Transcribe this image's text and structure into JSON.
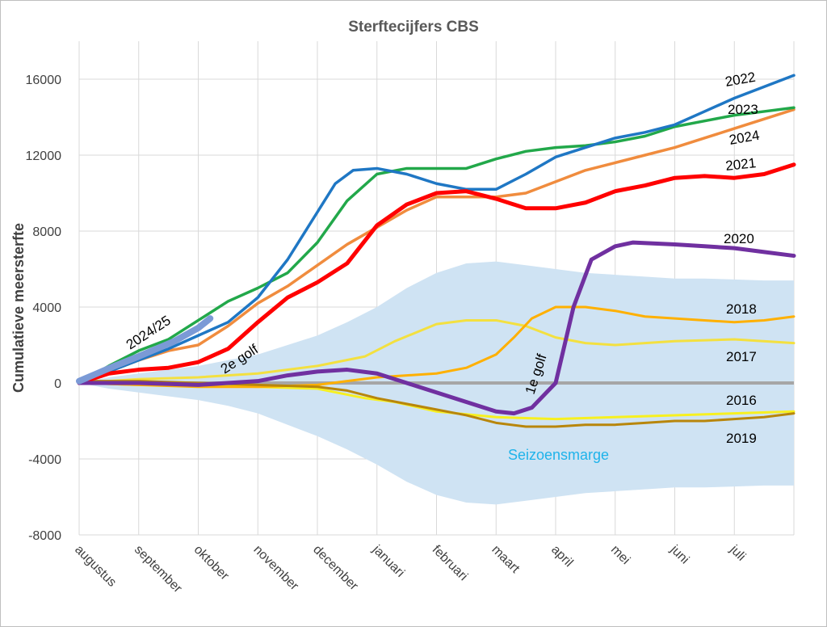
{
  "chart_data": {
    "type": "line",
    "title": "Sterftecijfers CBS",
    "ylabel": "Cumulatieve meersterfte",
    "xlabel": "",
    "ylim": [
      -8000,
      18000
    ],
    "yticks": [
      16000,
      12000,
      8000,
      4000,
      0,
      -4000,
      -8000
    ],
    "x_categories": [
      "augustus",
      "september",
      "oktober",
      "november",
      "december",
      "januari",
      "februari",
      "maart",
      "april",
      "mei",
      "juni",
      "juli"
    ],
    "grid": true,
    "colors": {
      "2022": "#1f77c4",
      "2023": "#22a84a",
      "2024": "#f08c3e",
      "2021": "#ff0000",
      "2020": "#7030a0",
      "2018": "#ffb000",
      "2017": "#f3e040",
      "2016": "#f7f020",
      "2019": "#b8860b",
      "2024/25": "#7b9ad6",
      "band": "#cfe3f3",
      "zero": "#a6a6a6"
    },
    "band": {
      "label": "Seizoensmarge",
      "x": [
        0,
        0.5,
        1,
        1.5,
        2,
        2.5,
        3,
        3.5,
        4,
        4.5,
        5,
        5.5,
        6,
        6.5,
        7,
        7.5,
        8,
        8.5,
        9,
        9.5,
        10,
        10.5,
        11,
        11.5,
        12
      ],
      "upper": [
        0,
        300,
        500,
        700,
        900,
        1200,
        1500,
        2000,
        2500,
        3200,
        4000,
        5000,
        5800,
        6300,
        6400,
        6200,
        6000,
        5800,
        5700,
        5600,
        5500,
        5500,
        5450,
        5400,
        5400
      ],
      "lower": [
        0,
        -300,
        -500,
        -700,
        -900,
        -1200,
        -1600,
        -2200,
        -2800,
        -3500,
        -4300,
        -5200,
        -5900,
        -6300,
        -6400,
        -6200,
        -6000,
        -5800,
        -5700,
        -5600,
        -5500,
        -5500,
        -5450,
        -5400,
        -5400
      ]
    },
    "series": [
      {
        "name": "2016",
        "x": [
          0,
          1,
          2,
          3,
          4,
          4.8,
          5.3,
          6,
          7,
          8,
          9,
          10,
          11,
          12
        ],
        "values": [
          0,
          -100,
          -100,
          -200,
          -300,
          -800,
          -1000,
          -1500,
          -1800,
          -1900,
          -1800,
          -1700,
          -1600,
          -1500
        ]
      },
      {
        "name": "2017",
        "x": [
          0,
          1,
          2,
          3,
          4,
          4.8,
          5.3,
          6,
          6.5,
          7,
          7.5,
          8,
          8.5,
          9,
          9.5,
          10,
          11,
          12
        ],
        "values": [
          0,
          200,
          300,
          500,
          900,
          1400,
          2200,
          3100,
          3300,
          3300,
          3000,
          2400,
          2100,
          2000,
          2100,
          2200,
          2300,
          2100
        ]
      },
      {
        "name": "2018",
        "x": [
          0,
          1,
          2,
          3,
          4,
          4.5,
          5,
          5.5,
          6,
          6.5,
          7,
          7.3,
          7.6,
          8,
          8.5,
          9,
          9.5,
          10,
          10.5,
          11,
          11.5,
          12
        ],
        "values": [
          0,
          -100,
          -200,
          -200,
          -100,
          100,
          300,
          400,
          500,
          800,
          1500,
          2400,
          3400,
          4000,
          4000,
          3800,
          3500,
          3400,
          3300,
          3200,
          3300,
          3500
        ]
      },
      {
        "name": "2019",
        "x": [
          0,
          1,
          2,
          3,
          4,
          4.5,
          5,
          5.5,
          6,
          6.5,
          7,
          7.5,
          8,
          8.5,
          9,
          9.5,
          10,
          10.5,
          11,
          11.5,
          12
        ],
        "values": [
          100,
          100,
          0,
          -100,
          -200,
          -400,
          -800,
          -1100,
          -1400,
          -1700,
          -2100,
          -2300,
          -2300,
          -2200,
          -2200,
          -2100,
          -2000,
          -2000,
          -1900,
          -1800,
          -1600
        ]
      },
      {
        "name": "2020",
        "x": [
          0,
          1,
          2,
          3,
          3.5,
          4,
          4.5,
          5,
          5.5,
          6,
          6.5,
          7,
          7.3,
          7.6,
          8,
          8.3,
          8.6,
          9,
          9.3,
          10,
          10.5,
          11,
          11.5,
          12
        ],
        "values": [
          0,
          0,
          -100,
          100,
          400,
          600,
          700,
          500,
          0,
          -500,
          -1000,
          -1500,
          -1600,
          -1300,
          0,
          4000,
          6500,
          7200,
          7400,
          7300,
          7200,
          7100,
          6900,
          6700
        ]
      },
      {
        "name": "2021",
        "x": [
          0,
          0.5,
          1,
          1.5,
          2,
          2.5,
          3,
          3.5,
          4,
          4.5,
          5,
          5.5,
          6,
          6.5,
          7,
          7.5,
          8,
          8.5,
          9,
          9.5,
          10,
          10.5,
          11,
          11.5,
          12
        ],
        "values": [
          0,
          500,
          700,
          800,
          1100,
          1800,
          3200,
          4500,
          5300,
          6300,
          8300,
          9400,
          10000,
          10100,
          9700,
          9200,
          9200,
          9500,
          10100,
          10400,
          10800,
          10900,
          10800,
          11000,
          11500
        ]
      },
      {
        "name": "2022",
        "x": [
          0,
          0.5,
          1,
          1.5,
          2,
          2.5,
          3,
          3.5,
          4,
          4.3,
          4.6,
          5,
          5.5,
          6,
          6.5,
          7,
          7.5,
          8,
          8.5,
          9,
          9.5,
          10,
          10.5,
          11,
          11.5,
          12
        ],
        "values": [
          0,
          600,
          1200,
          1800,
          2500,
          3200,
          4500,
          6500,
          9000,
          10500,
          11200,
          11300,
          11000,
          10500,
          10200,
          10200,
          11000,
          11900,
          12400,
          12900,
          13200,
          13600,
          14300,
          15000,
          15600,
          16200
        ]
      },
      {
        "name": "2023",
        "x": [
          0,
          0.5,
          1,
          1.5,
          2,
          2.5,
          3,
          3.5,
          4,
          4.5,
          5,
          5.5,
          6,
          6.5,
          7,
          7.5,
          8,
          8.5,
          9,
          9.5,
          10,
          10.5,
          11,
          11.5,
          12
        ],
        "values": [
          0,
          900,
          1700,
          2300,
          3300,
          4300,
          5000,
          5800,
          7400,
          9600,
          11000,
          11300,
          11300,
          11300,
          11800,
          12200,
          12400,
          12500,
          12700,
          13000,
          13500,
          13800,
          14100,
          14300,
          14500
        ]
      },
      {
        "name": "2024",
        "x": [
          0,
          0.5,
          1,
          1.5,
          2,
          2.5,
          3,
          3.5,
          4,
          4.5,
          5,
          5.5,
          6,
          6.5,
          7,
          7.5,
          8,
          8.5,
          9,
          9.5,
          10,
          10.5,
          11,
          11.5,
          12
        ],
        "values": [
          0,
          600,
          1200,
          1700,
          2000,
          3000,
          4200,
          5100,
          6200,
          7300,
          8200,
          9100,
          9800,
          9800,
          9800,
          10000,
          10600,
          11200,
          11600,
          12000,
          12400,
          12900,
          13400,
          13900,
          14400
        ]
      },
      {
        "name": "2024/25",
        "x": [
          0,
          0.3,
          0.6,
          1,
          1.3,
          1.6,
          2,
          2.2
        ],
        "values": [
          100,
          500,
          900,
          1400,
          1800,
          2200,
          2900,
          3400
        ]
      }
    ],
    "labels": [
      {
        "text": "2022",
        "series": "2022"
      },
      {
        "text": "2023",
        "series": "2023"
      },
      {
        "text": "2024",
        "series": "2024"
      },
      {
        "text": "2021",
        "series": "2021"
      },
      {
        "text": "2020",
        "series": "2020"
      },
      {
        "text": "2018",
        "series": "2018"
      },
      {
        "text": "2017",
        "series": "2017"
      },
      {
        "text": "2016",
        "series": "2016"
      },
      {
        "text": "2019",
        "series": "2019"
      },
      {
        "text": "2024/25",
        "series": "2024/25"
      }
    ],
    "annotations": [
      {
        "text": "2e golf"
      },
      {
        "text": "1e golf"
      },
      {
        "text": "Seizoensmarge"
      }
    ]
  }
}
